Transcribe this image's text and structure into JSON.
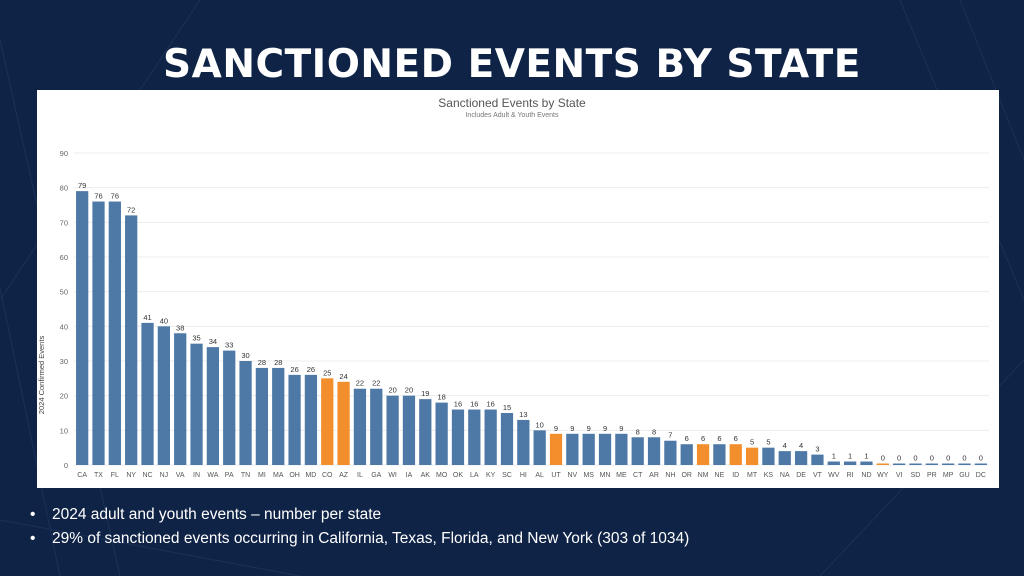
{
  "slide": {
    "title": "SANCTIONED EVENTS BY STATE",
    "bullets": [
      "2024 adult and youth events – number per state",
      "29% of sanctioned events occurring in California, Texas, Florida, and New York (303 of 1034)"
    ],
    "background_color": "#0f2346"
  },
  "chart_data": {
    "type": "bar",
    "title": "Sanctioned Events by State",
    "subtitle": "Includes Adult & Youth Events",
    "ylabel": "2024 Confirmed Events",
    "xlabel": "",
    "ylim": [
      0,
      90
    ],
    "yticks": [
      0,
      10,
      20,
      30,
      40,
      50,
      60,
      70,
      80,
      90
    ],
    "grid": true,
    "colors": {
      "default": "#4e79a7",
      "highlight": "#f28e2b"
    },
    "categories": [
      "CA",
      "TX",
      "FL",
      "NY",
      "NC",
      "NJ",
      "VA",
      "IN",
      "WA",
      "PA",
      "TN",
      "MI",
      "MA",
      "OH",
      "MD",
      "CO",
      "AZ",
      "IL",
      "GA",
      "WI",
      "IA",
      "AK",
      "MO",
      "OK",
      "LA",
      "KY",
      "SC",
      "HI",
      "AL",
      "UT",
      "NV",
      "MS",
      "MN",
      "ME",
      "CT",
      "AR",
      "NH",
      "OR",
      "NM",
      "NE",
      "ID",
      "MT",
      "KS",
      "NA",
      "DE",
      "VT",
      "WV",
      "RI",
      "ND",
      "WY",
      "VI",
      "SD",
      "PR",
      "MP",
      "GU",
      "DC"
    ],
    "values": [
      79,
      76,
      76,
      72,
      41,
      40,
      38,
      35,
      34,
      33,
      30,
      28,
      28,
      26,
      26,
      25,
      24,
      22,
      22,
      20,
      20,
      19,
      18,
      16,
      16,
      16,
      15,
      13,
      10,
      9,
      9,
      9,
      9,
      9,
      8,
      8,
      7,
      6,
      6,
      6,
      6,
      5,
      5,
      4,
      4,
      3,
      1,
      1,
      1,
      0,
      0,
      0,
      0,
      0,
      0,
      0
    ],
    "highlighted": [
      "CO",
      "AZ",
      "UT",
      "NM",
      "ID",
      "MT",
      "WY"
    ]
  }
}
